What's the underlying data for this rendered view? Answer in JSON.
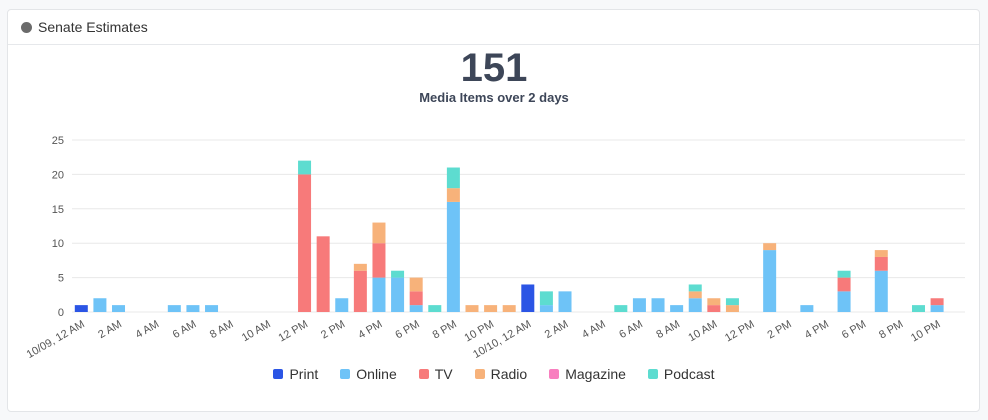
{
  "card": {
    "title": "Senate Estimates",
    "icon": "circle-icon"
  },
  "summary": {
    "total": "151",
    "label": "Media Items over 2 days"
  },
  "colors": {
    "Print": "#2b55e5",
    "Online": "#6ec3f7",
    "TV": "#f77a7a",
    "Radio": "#f7b27a",
    "Magazine": "#f87fbf",
    "Podcast": "#5ddcd0"
  },
  "chart_data": {
    "type": "bar",
    "stacked": true,
    "ylim": [
      0,
      25
    ],
    "yticks": [
      0,
      5,
      10,
      15,
      20,
      25
    ],
    "grid": true,
    "legend_position": "bottom",
    "x_tick_labels": [
      {
        "index": 0,
        "label": "10/09, 12 AM"
      },
      {
        "index": 2,
        "label": "2 AM"
      },
      {
        "index": 4,
        "label": "4 AM"
      },
      {
        "index": 6,
        "label": "6 AM"
      },
      {
        "index": 8,
        "label": "8 AM"
      },
      {
        "index": 10,
        "label": "10 AM"
      },
      {
        "index": 12,
        "label": "12 PM"
      },
      {
        "index": 14,
        "label": "2 PM"
      },
      {
        "index": 16,
        "label": "4 PM"
      },
      {
        "index": 18,
        "label": "6 PM"
      },
      {
        "index": 20,
        "label": "8 PM"
      },
      {
        "index": 22,
        "label": "10 PM"
      },
      {
        "index": 24,
        "label": "10/10, 12 AM"
      },
      {
        "index": 26,
        "label": "2 AM"
      },
      {
        "index": 28,
        "label": "4 AM"
      },
      {
        "index": 30,
        "label": "6 AM"
      },
      {
        "index": 32,
        "label": "8 AM"
      },
      {
        "index": 34,
        "label": "10 AM"
      },
      {
        "index": 36,
        "label": "12 PM"
      },
      {
        "index": 38,
        "label": "2 PM"
      },
      {
        "index": 40,
        "label": "4 PM"
      },
      {
        "index": 42,
        "label": "6 PM"
      },
      {
        "index": 44,
        "label": "8 PM"
      },
      {
        "index": 46,
        "label": "10 PM"
      }
    ],
    "series": [
      {
        "name": "Print",
        "values": [
          1,
          0,
          0,
          0,
          0,
          0,
          0,
          0,
          0,
          0,
          0,
          0,
          0,
          0,
          0,
          0,
          0,
          0,
          0,
          0,
          0,
          0,
          0,
          0,
          4,
          0,
          0,
          0,
          0,
          0,
          0,
          0,
          0,
          0,
          0,
          0,
          0,
          0,
          0,
          0,
          0,
          0,
          0,
          0,
          0,
          0,
          0,
          0
        ]
      },
      {
        "name": "Online",
        "values": [
          0,
          2,
          1,
          0,
          0,
          1,
          1,
          1,
          0,
          0,
          0,
          0,
          0,
          0,
          2,
          0,
          5,
          5,
          1,
          0,
          16,
          0,
          0,
          0,
          0,
          1,
          3,
          0,
          0,
          0,
          2,
          2,
          1,
          2,
          0,
          0,
          0,
          9,
          0,
          1,
          0,
          3,
          0,
          6,
          0,
          0,
          1,
          0
        ]
      },
      {
        "name": "TV",
        "values": [
          0,
          0,
          0,
          0,
          0,
          0,
          0,
          0,
          0,
          0,
          0,
          0,
          20,
          11,
          0,
          6,
          5,
          0,
          2,
          0,
          0,
          0,
          0,
          0,
          0,
          0,
          0,
          0,
          0,
          0,
          0,
          0,
          0,
          0,
          1,
          0,
          0,
          0,
          0,
          0,
          0,
          2,
          0,
          2,
          0,
          0,
          1,
          0
        ]
      },
      {
        "name": "Radio",
        "values": [
          0,
          0,
          0,
          0,
          0,
          0,
          0,
          0,
          0,
          0,
          0,
          0,
          0,
          0,
          0,
          1,
          3,
          0,
          2,
          0,
          2,
          1,
          1,
          1,
          0,
          0,
          0,
          0,
          0,
          0,
          0,
          0,
          0,
          1,
          1,
          1,
          0,
          1,
          0,
          0,
          0,
          0,
          0,
          1,
          0,
          0,
          0,
          0
        ]
      },
      {
        "name": "Magazine",
        "values": [
          0,
          0,
          0,
          0,
          0,
          0,
          0,
          0,
          0,
          0,
          0,
          0,
          0,
          0,
          0,
          0,
          0,
          0,
          0,
          0,
          0,
          0,
          0,
          0,
          0,
          0,
          0,
          0,
          0,
          0,
          0,
          0,
          0,
          0,
          0,
          0,
          0,
          0,
          0,
          0,
          0,
          0,
          0,
          0,
          0,
          0,
          0,
          0
        ]
      },
      {
        "name": "Podcast",
        "values": [
          0,
          0,
          0,
          0,
          0,
          0,
          0,
          0,
          0,
          0,
          0,
          0,
          2,
          0,
          0,
          0,
          0,
          1,
          0,
          1,
          3,
          0,
          0,
          0,
          0,
          2,
          0,
          0,
          0,
          1,
          0,
          0,
          0,
          1,
          0,
          1,
          0,
          0,
          0,
          0,
          0,
          1,
          0,
          0,
          0,
          1,
          0,
          0
        ]
      }
    ]
  },
  "legend": [
    "Print",
    "Online",
    "TV",
    "Radio",
    "Magazine",
    "Podcast"
  ]
}
